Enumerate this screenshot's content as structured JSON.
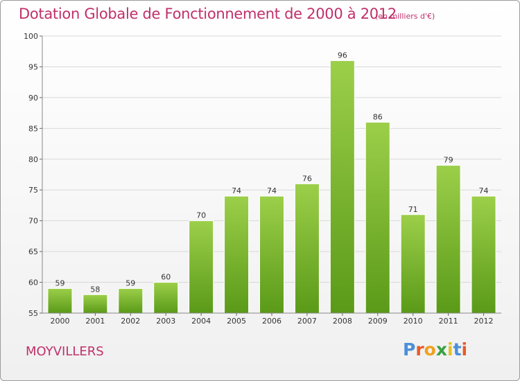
{
  "header": {
    "title": "Dotation Globale de Fonctionnement de 2000 à 2012",
    "subtitle": "(en milliers d'€)"
  },
  "footer": {
    "place": "MOYVILLERS",
    "logo_text": "Proxiti",
    "logo_colors": [
      "#4a90d9",
      "#e85a2a",
      "#f0a020",
      "#3aa040",
      "#e8c020",
      "#4a90d9",
      "#e85a2a"
    ]
  },
  "colors": {
    "title": "#c0306a",
    "bar_top": "#9ccf4a",
    "bar_bottom": "#5a9a18",
    "grid": "#d8d8d8"
  },
  "chart_data": {
    "type": "bar",
    "categories": [
      "2000",
      "2001",
      "2002",
      "2003",
      "2004",
      "2005",
      "2006",
      "2007",
      "2008",
      "2009",
      "2010",
      "2011",
      "2012"
    ],
    "values": [
      59,
      58,
      59,
      60,
      70,
      74,
      74,
      76,
      96,
      86,
      71,
      79,
      74
    ],
    "title": "Dotation Globale de Fonctionnement de 2000 à 2012",
    "subtitle": "(en milliers d'€)",
    "ylim": [
      55,
      100
    ],
    "yticks": [
      55,
      60,
      65,
      70,
      75,
      80,
      85,
      90,
      95,
      100
    ],
    "grid": true,
    "legend": "none"
  }
}
